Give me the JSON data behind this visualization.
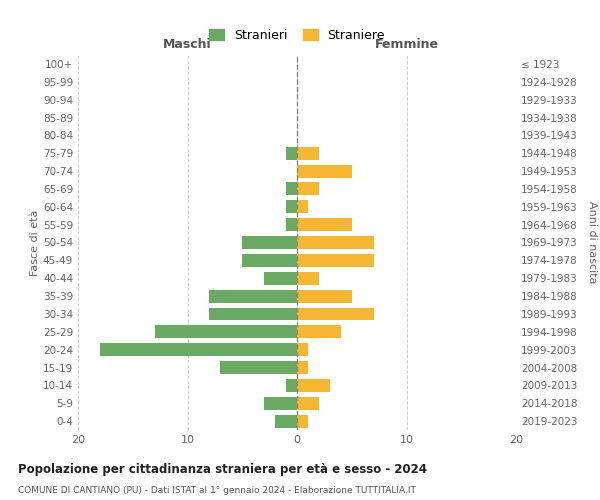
{
  "age_groups": [
    "0-4",
    "5-9",
    "10-14",
    "15-19",
    "20-24",
    "25-29",
    "30-34",
    "35-39",
    "40-44",
    "45-49",
    "50-54",
    "55-59",
    "60-64",
    "65-69",
    "70-74",
    "75-79",
    "80-84",
    "85-89",
    "90-94",
    "95-99",
    "100+"
  ],
  "birth_years": [
    "2019-2023",
    "2014-2018",
    "2009-2013",
    "2004-2008",
    "1999-2003",
    "1994-1998",
    "1989-1993",
    "1984-1988",
    "1979-1983",
    "1974-1978",
    "1969-1973",
    "1964-1968",
    "1959-1963",
    "1954-1958",
    "1949-1953",
    "1944-1948",
    "1939-1943",
    "1934-1938",
    "1929-1933",
    "1924-1928",
    "≤ 1923"
  ],
  "maschi": [
    2,
    3,
    1,
    7,
    18,
    13,
    8,
    8,
    3,
    5,
    5,
    1,
    1,
    1,
    0,
    1,
    0,
    0,
    0,
    0,
    0
  ],
  "femmine": [
    1,
    2,
    3,
    1,
    1,
    4,
    7,
    5,
    2,
    7,
    7,
    5,
    1,
    2,
    5,
    2,
    0,
    0,
    0,
    0,
    0
  ],
  "color_maschi": "#6aaa64",
  "color_femmine": "#f5b731",
  "title": "Popolazione per cittadinanza straniera per età e sesso - 2024",
  "subtitle": "COMUNE DI CANTIANO (PU) - Dati ISTAT al 1° gennaio 2024 - Elaborazione TUTTITALIA.IT",
  "xlabel_left": "Maschi",
  "xlabel_right": "Femmine",
  "ylabel_left": "Fasce di età",
  "ylabel_right": "Anni di nascita",
  "legend_maschi": "Stranieri",
  "legend_femmine": "Straniere",
  "xlim": 20,
  "background_color": "#ffffff",
  "grid_color": "#cccccc"
}
